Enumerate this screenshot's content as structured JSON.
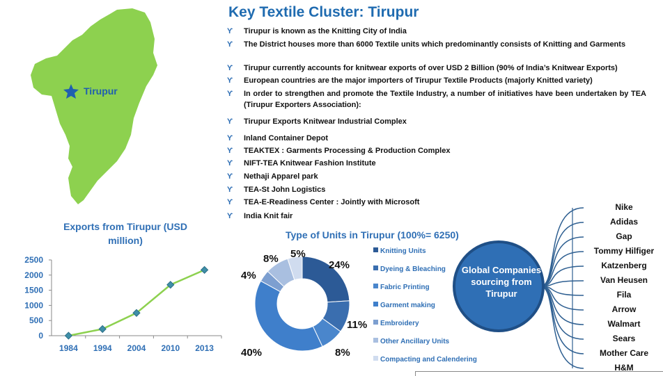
{
  "header": {
    "title": "Key Textile Cluster: Tirupur"
  },
  "bullets": [
    "Tirupur is known as the Knitting City of India",
    "The District houses more than 6000 Textile units which predominantly consists of Knitting and Garments",
    "Tirupur currently accounts for knitwear exports of over USD 2 Billion  (90% of India’s Knitwear Exports)",
    "European countries are the major importers of Tirupur Textile Products (majorly Knitted variety)",
    "In order to strengthen and promote the Textile Industry, a number of initiatives have been undertaken by TEA (Tirupur Exporters Association):",
    "Tirupur  Exports Knitwear Industrial Complex",
    "Inland Container Depot",
    "TEAKTEX : Garments Processing & Production Complex",
    "NIFT-TEA Knitwear Fashion Institute",
    "Nethaji Apparel park",
    "TEA-St John Logistics",
    "TEA-E-Readiness Center : Jointly with Microsoft",
    "India Knit fair"
  ],
  "map": {
    "label": "Tirupur",
    "fill_color": "#8dd14f",
    "marker_color": "#1f5fb0",
    "icon": "star-icon"
  },
  "colors": {
    "accent": "#2f6fb5",
    "title": "#1f6bb0",
    "line": "#8dd14f",
    "hub": "#2f6fb5"
  },
  "chart_data": [
    {
      "type": "line",
      "title": "Exports from Tirupur (USD million)",
      "categories": [
        "1984",
        "1994",
        "2004",
        "2010",
        "2013"
      ],
      "values": [
        0,
        220,
        750,
        1680,
        2170
      ],
      "y_ticks": [
        "0",
        "500",
        "1000",
        "1500",
        "2000",
        "2500"
      ],
      "ylim": [
        0,
        2500
      ],
      "grid": false
    },
    {
      "type": "pie",
      "title": "Type of Units in Tirupur (100%= 6250)",
      "donut": true,
      "labels": [
        "Knitting Units",
        "Dyeing & Bleaching",
        "Fabric Printing",
        "Garment making",
        "Embroidery",
        "Other Ancillary Units",
        "Compacting and Calendering"
      ],
      "values": [
        24,
        11,
        8,
        40,
        4,
        8,
        5
      ],
      "value_labels": [
        "24%",
        "11%",
        "8%",
        "40%",
        "4%",
        "8%",
        "5%"
      ],
      "colors": [
        "#2c5a96",
        "#3a6eaf",
        "#4a86cc",
        "#3f7fcb",
        "#7d9fd0",
        "#a9bfe0",
        "#d0dcef"
      ]
    }
  ],
  "hub": {
    "label": "Global Companies sourcing from Tirupur",
    "brands": [
      "Nike",
      "Adidas",
      "Gap",
      "Tommy Hilfiger",
      "Katzenberg",
      "Van Heusen",
      "Fila",
      "Arrow",
      "Walmart",
      "Sears",
      "Mother Care",
      "H&M"
    ]
  }
}
